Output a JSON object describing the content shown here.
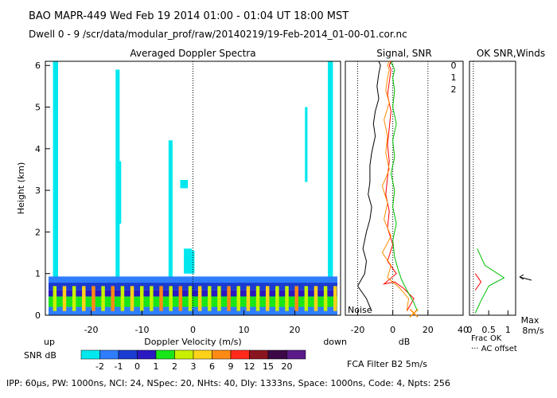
{
  "header": {
    "line1": "BAO  MAPR-449  Wed Feb 19 2014 01:00 - 01:04 UT 18:00 MST",
    "line2": "Dwell  0 - 9  /scr/data/modular_prof/raw/20140219/19-Feb-2014_01-00-01.cor.nc"
  },
  "footer": "IPP: 60µs, PW: 1000ns, NCI: 24, NSpec: 20, NHts: 40, Dly: 1333ns, Space: 1000ns, Code: 4, Npts: 256",
  "chart_data": [
    {
      "type": "heatmap",
      "title": "Averaged Doppler Spectra",
      "xlabel": "Doppler Velocity (m/s)",
      "ylabel": "Height (km)",
      "xlim": [
        -29,
        29
      ],
      "ylim": [
        0,
        6.1
      ],
      "xticks": [
        -20,
        -10,
        0,
        10,
        20
      ],
      "yticks": [
        0,
        1,
        2,
        3,
        4,
        5,
        6
      ],
      "corner_left": "up",
      "corner_right": "down",
      "colorbar": {
        "label": "SNR dB",
        "levels": [
          -2,
          -1,
          0,
          1,
          2,
          3,
          6,
          9,
          12,
          15,
          20
        ],
        "colors": [
          "#00e8ee",
          "#2f7dff",
          "#1a3cd0",
          "#2a18c0",
          "#19e619",
          "#c8f000",
          "#ffd21a",
          "#ff8a14",
          "#ff2a1a",
          "#8a1420",
          "#3c0845",
          "#5a1a8a"
        ]
      }
    },
    {
      "type": "line",
      "title": "Signal, SNR",
      "xlabel": "dB",
      "xlim": [
        -27,
        40
      ],
      "ylim": [
        0,
        6.1
      ],
      "xticks": [
        -20,
        0,
        20,
        40
      ],
      "noise_label": "Noise",
      "series": [
        {
          "color": "#000000",
          "x": [
            -12,
            -15,
            -20,
            -16,
            -15,
            -17,
            -15,
            -13,
            -12,
            -14,
            -13,
            -13,
            -12,
            -10,
            -11,
            -10,
            -8,
            -9,
            -8,
            -7,
            -8
          ],
          "y": [
            0.1,
            0.4,
            0.7,
            1.0,
            1.3,
            1.6,
            2.0,
            2.3,
            2.6,
            2.9,
            3.2,
            3.6,
            3.9,
            4.3,
            4.6,
            4.9,
            5.2,
            5.5,
            5.8,
            6.0,
            6.1
          ]
        },
        {
          "color": "#ff0000",
          "x": [
            8,
            12,
            6,
            1,
            -5,
            2,
            -3,
            0,
            -3,
            -2,
            -4,
            -3,
            -2,
            -3,
            -2,
            -1,
            -3,
            -2,
            -1,
            -2,
            -1
          ],
          "y": [
            0.1,
            0.4,
            0.65,
            0.8,
            0.75,
            1.0,
            1.3,
            1.7,
            2.1,
            2.5,
            2.9,
            3.3,
            3.7,
            4.1,
            4.5,
            4.9,
            5.3,
            5.6,
            5.9,
            6.0,
            6.1
          ]
        },
        {
          "color": "#ff8c00",
          "x": [
            8,
            9,
            4,
            0,
            -3,
            -1,
            -6,
            -1,
            -5,
            -3,
            -6,
            -2,
            -4,
            -3,
            -5,
            -2,
            -4,
            -3,
            -2,
            -3,
            -2
          ],
          "y": [
            0.1,
            0.4,
            0.65,
            0.8,
            0.9,
            1.2,
            1.5,
            1.9,
            2.3,
            2.7,
            3.1,
            3.5,
            3.9,
            4.3,
            4.7,
            5.1,
            5.4,
            5.7,
            5.9,
            6.0,
            6.1
          ]
        },
        {
          "color": "#00c000",
          "x": [
            14,
            12,
            8,
            5,
            3,
            1,
            0,
            2,
            0,
            1,
            -1,
            1,
            0,
            2,
            0,
            1,
            0,
            1,
            0,
            -1,
            0
          ],
          "y": [
            0.1,
            0.3,
            0.6,
            0.85,
            1.1,
            1.4,
            1.8,
            2.2,
            2.6,
            3.0,
            3.4,
            3.8,
            4.2,
            4.6,
            5.0,
            5.4,
            5.7,
            5.9,
            6.0,
            6.05,
            6.1
          ]
        }
      ],
      "marker": {
        "x": 12,
        "y": 0.05
      }
    },
    {
      "type": "line",
      "title": "OK SNR,Winds",
      "legend": [
        {
          "label": "0",
          "color": "#ff0000"
        },
        {
          "label": "1",
          "color": "#ff8c00"
        },
        {
          "label": "2",
          "color": "#00c000"
        }
      ],
      "xlim": [
        0,
        1.2
      ],
      "xticks": [
        0,
        0.5,
        1
      ],
      "xtick_labels": [
        "0",
        "0.5",
        "1"
      ],
      "labels": {
        "frac_ok": "Frac OK",
        "ac_offset": "··· AC offset",
        "max": "Max",
        "max_value": "8m/s"
      },
      "filter_label": "FCA Filter B2  5m/s"
    }
  ]
}
